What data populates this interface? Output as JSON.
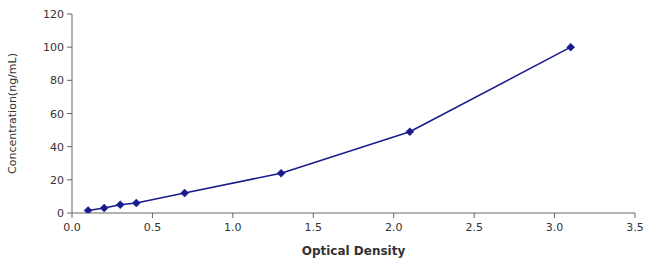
{
  "chart_data": {
    "type": "line",
    "x": [
      0.1,
      0.2,
      0.3,
      0.4,
      0.7,
      1.3,
      2.1,
      3.1
    ],
    "values": [
      1.5,
      3.0,
      5.0,
      6.0,
      12.0,
      24.0,
      49.0,
      100.0
    ],
    "color": "#1a1a8c",
    "marker": "diamond",
    "xlabel": "Optical Density",
    "ylabel": "Concentration(ng/mL)",
    "xlim": [
      0,
      3.5
    ],
    "ylim": [
      0,
      120
    ],
    "xticks": [
      {
        "value": 0,
        "label": "0.0"
      },
      0.5,
      {
        "value": 1.0,
        "label": "1.0"
      },
      1.5,
      {
        "value": 2.0,
        "label": "2.0"
      },
      2.5,
      {
        "value": 3.0,
        "label": "3.0"
      },
      3.5
    ],
    "yticks": [
      0,
      20,
      40,
      60,
      80,
      100,
      120
    ],
    "grid": false
  }
}
